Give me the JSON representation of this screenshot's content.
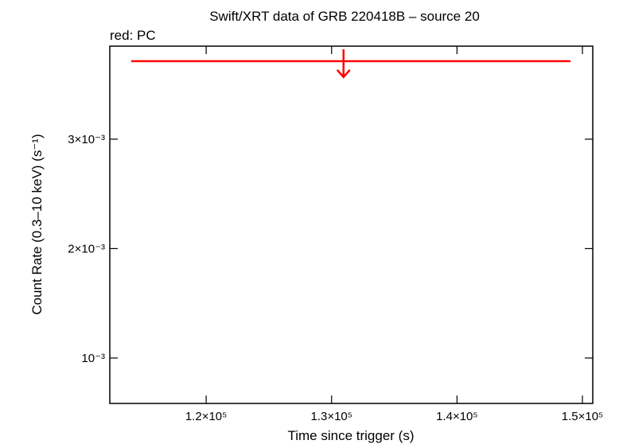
{
  "chart_data": {
    "type": "upper_limit",
    "title": "Swift/XRT data of GRB 220418B – source 20",
    "subtitle": "red: PC",
    "xlabel": "Time since trigger (s)",
    "ylabel": "Count Rate (0.3–10 keV) (s⁻¹)",
    "xlim": [
      112317,
      150825
    ],
    "ylim": [
      0.000585,
      0.00385
    ],
    "xticks": [
      {
        "value": 120000,
        "label": "1.2×10⁵"
      },
      {
        "value": 130000,
        "label": "1.3×10⁵"
      },
      {
        "value": 140000,
        "label": "1.4×10⁵"
      },
      {
        "value": 150000,
        "label": "1.5×10⁵"
      }
    ],
    "yticks": [
      {
        "value": 0.001,
        "label": "10⁻³"
      },
      {
        "value": 0.002,
        "label": "2×10⁻³"
      },
      {
        "value": 0.003,
        "label": "3×10⁻³"
      }
    ],
    "series": [
      {
        "name": "PC",
        "color": "#ff0000",
        "x": [
          130952
        ],
        "x_start": [
          114032
        ],
        "x_end": [
          149048
        ],
        "values": [
          0.003713
        ]
      }
    ]
  }
}
